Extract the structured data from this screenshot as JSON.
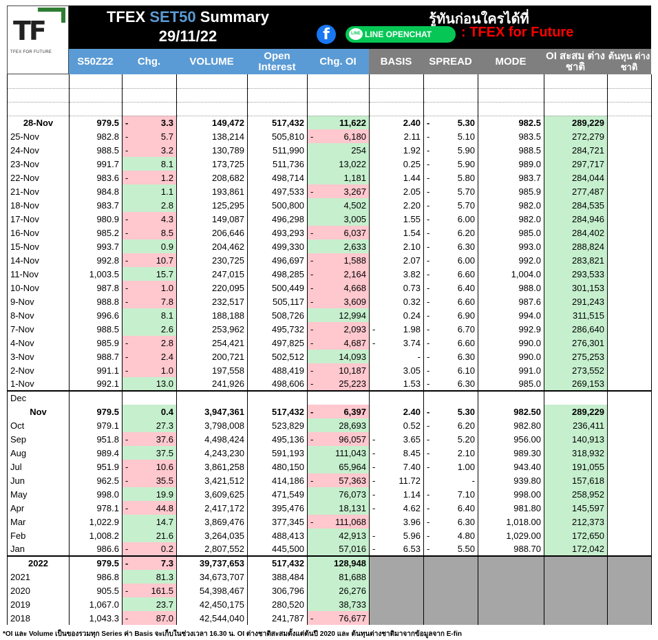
{
  "header": {
    "logo_text": "TF",
    "logo_sub": "TFEX FOR FUTURE",
    "title_prefix": "TFEX",
    "title_set50": "SET50",
    "title_suffix": "Summary",
    "date": "29/11/22",
    "slogan": "รู้ทันก่อนใครได้ที่",
    "line_label": "LINE OPENCHAT",
    "line_bubble": "LINE",
    "group_name": ": TFEX for Future",
    "fb_icon": "f"
  },
  "columns": [
    "S50Z22",
    "Chg.",
    "VOLUME",
    "Open Interest",
    "Chg. OI",
    "BASIS",
    "SPREAD",
    "MODE",
    "OI สะสม ต่างชาติ",
    "ต้นทุน ต่างชาติ"
  ],
  "daily": [
    {
      "d": "28-Nov",
      "p": "979.5",
      "c": "3.3",
      "cs": "-",
      "v": "149,472",
      "oi": "517,432",
      "coi": "11,622",
      "coiS": "",
      "b": "2.40",
      "bs": "",
      "s": "5.30",
      "ss": "-",
      "m": "982.5",
      "f": "289,229"
    },
    {
      "d": "25-Nov",
      "p": "982.8",
      "c": "5.7",
      "cs": "-",
      "v": "138,214",
      "oi": "505,810",
      "coi": "6,180",
      "coiS": "-",
      "b": "2.11",
      "bs": "",
      "s": "5.10",
      "ss": "-",
      "m": "983.5",
      "f": "272,279"
    },
    {
      "d": "24-Nov",
      "p": "988.5",
      "c": "3.2",
      "cs": "-",
      "v": "130,789",
      "oi": "511,990",
      "coi": "254",
      "coiS": "",
      "b": "1.92",
      "bs": "",
      "s": "5.90",
      "ss": "-",
      "m": "988.5",
      "f": "284,721"
    },
    {
      "d": "23-Nov",
      "p": "991.7",
      "c": "8.1",
      "cs": "",
      "v": "173,725",
      "oi": "511,736",
      "coi": "13,022",
      "coiS": "",
      "b": "0.25",
      "bs": "",
      "s": "5.90",
      "ss": "-",
      "m": "989.0",
      "f": "297,717"
    },
    {
      "d": "22-Nov",
      "p": "983.6",
      "c": "1.2",
      "cs": "-",
      "v": "208,682",
      "oi": "498,714",
      "coi": "1,181",
      "coiS": "",
      "b": "1.44",
      "bs": "",
      "s": "5.80",
      "ss": "-",
      "m": "983.7",
      "f": "284,044"
    },
    {
      "d": "21-Nov",
      "p": "984.8",
      "c": "1.1",
      "cs": "",
      "v": "193,861",
      "oi": "497,533",
      "coi": "3,267",
      "coiS": "-",
      "b": "2.05",
      "bs": "",
      "s": "5.70",
      "ss": "-",
      "m": "985.9",
      "f": "277,487"
    },
    {
      "d": "18-Nov",
      "p": "983.7",
      "c": "2.8",
      "cs": "",
      "v": "125,295",
      "oi": "500,800",
      "coi": "4,502",
      "coiS": "",
      "b": "2.20",
      "bs": "",
      "s": "5.70",
      "ss": "-",
      "m": "982.0",
      "f": "284,535"
    },
    {
      "d": "17-Nov",
      "p": "980.9",
      "c": "4.3",
      "cs": "-",
      "v": "149,087",
      "oi": "496,298",
      "coi": "3,005",
      "coiS": "",
      "b": "1.55",
      "bs": "",
      "s": "6.00",
      "ss": "-",
      "m": "982.0",
      "f": "284,946"
    },
    {
      "d": "16-Nov",
      "p": "985.2",
      "c": "8.5",
      "cs": "-",
      "v": "206,646",
      "oi": "493,293",
      "coi": "6,037",
      "coiS": "-",
      "b": "1.54",
      "bs": "",
      "s": "6.20",
      "ss": "-",
      "m": "985.0",
      "f": "284,402"
    },
    {
      "d": "15-Nov",
      "p": "993.7",
      "c": "0.9",
      "cs": "",
      "v": "204,462",
      "oi": "499,330",
      "coi": "2,633",
      "coiS": "",
      "b": "2.10",
      "bs": "",
      "s": "6.30",
      "ss": "-",
      "m": "993.0",
      "f": "288,824"
    },
    {
      "d": "14-Nov",
      "p": "992.8",
      "c": "10.7",
      "cs": "-",
      "v": "230,725",
      "oi": "496,697",
      "coi": "1,588",
      "coiS": "-",
      "b": "2.07",
      "bs": "",
      "s": "6.00",
      "ss": "-",
      "m": "992.0",
      "f": "283,821"
    },
    {
      "d": "11-Nov",
      "p": "1,003.5",
      "c": "15.7",
      "cs": "",
      "v": "247,015",
      "oi": "498,285",
      "coi": "2,164",
      "coiS": "-",
      "b": "3.82",
      "bs": "",
      "s": "6.60",
      "ss": "-",
      "m": "1,004.0",
      "f": "293,533"
    },
    {
      "d": "10-Nov",
      "p": "987.8",
      "c": "1.0",
      "cs": "-",
      "v": "220,095",
      "oi": "500,449",
      "coi": "4,668",
      "coiS": "-",
      "b": "0.73",
      "bs": "",
      "s": "6.40",
      "ss": "-",
      "m": "988.0",
      "f": "301,153"
    },
    {
      "d": "9-Nov",
      "p": "988.8",
      "c": "7.8",
      "cs": "-",
      "v": "232,517",
      "oi": "505,117",
      "coi": "3,609",
      "coiS": "-",
      "b": "0.32",
      "bs": "",
      "s": "6.60",
      "ss": "-",
      "m": "987.6",
      "f": "291,243"
    },
    {
      "d": "8-Nov",
      "p": "996.6",
      "c": "8.1",
      "cs": "",
      "v": "188,188",
      "oi": "508,726",
      "coi": "12,994",
      "coiS": "",
      "b": "0.24",
      "bs": "",
      "s": "6.90",
      "ss": "-",
      "m": "994.0",
      "f": "311,515"
    },
    {
      "d": "7-Nov",
      "p": "988.5",
      "c": "2.6",
      "cs": "",
      "v": "253,962",
      "oi": "495,732",
      "coi": "2,093",
      "coiS": "-",
      "b": "1.98",
      "bs": "-",
      "s": "6.70",
      "ss": "-",
      "m": "992.9",
      "f": "286,640"
    },
    {
      "d": "4-Nov",
      "p": "985.9",
      "c": "2.8",
      "cs": "-",
      "v": "254,421",
      "oi": "497,825",
      "coi": "4,687",
      "coiS": "-",
      "b": "3.74",
      "bs": "-",
      "s": "6.60",
      "ss": "-",
      "m": "990.0",
      "f": "276,301"
    },
    {
      "d": "3-Nov",
      "p": "988.7",
      "c": "2.4",
      "cs": "-",
      "v": "200,721",
      "oi": "502,512",
      "coi": "14,093",
      "coiS": "",
      "b": "-",
      "bs": "",
      "s": "6.30",
      "ss": "-",
      "m": "990.0",
      "f": "275,253"
    },
    {
      "d": "2-Nov",
      "p": "991.1",
      "c": "1.0",
      "cs": "-",
      "v": "197,558",
      "oi": "488,419",
      "coi": "10,187",
      "coiS": "-",
      "b": "3.05",
      "bs": "",
      "s": "6.10",
      "ss": "-",
      "m": "991.0",
      "f": "273,552"
    },
    {
      "d": "1-Nov",
      "p": "992.1",
      "c": "13.0",
      "cs": "",
      "v": "241,926",
      "oi": "498,606",
      "coi": "25,223",
      "coiS": "-",
      "b": "1.53",
      "bs": "",
      "s": "6.30",
      "ss": "-",
      "m": "985.0",
      "f": "269,153"
    }
  ],
  "month_label": "Dec",
  "monthly": [
    {
      "d": "Nov",
      "p": "979.5",
      "c": "0.4",
      "cs": "",
      "v": "3,947,361",
      "oi": "517,432",
      "coi": "6,397",
      "coiS": "-",
      "b": "2.40",
      "bs": "",
      "s": "5.30",
      "ss": "-",
      "m": "982.50",
      "f": "289,229"
    },
    {
      "d": "Oct",
      "p": "979.1",
      "c": "27.3",
      "cs": "",
      "v": "3,798,008",
      "oi": "523,829",
      "coi": "28,693",
      "coiS": "",
      "b": "0.52",
      "bs": "",
      "s": "6.20",
      "ss": "-",
      "m": "982.80",
      "f": "236,411"
    },
    {
      "d": "Sep",
      "p": "951.8",
      "c": "37.6",
      "cs": "-",
      "v": "4,498,424",
      "oi": "495,136",
      "coi": "96,057",
      "coiS": "-",
      "b": "3.65",
      "bs": "-",
      "s": "5.20",
      "ss": "-",
      "m": "956.00",
      "f": "140,913"
    },
    {
      "d": "Aug",
      "p": "989.4",
      "c": "37.5",
      "cs": "",
      "v": "4,243,230",
      "oi": "591,193",
      "coi": "111,043",
      "coiS": "",
      "b": "8.45",
      "bs": "-",
      "s": "2.10",
      "ss": "-",
      "m": "989.30",
      "f": "318,932"
    },
    {
      "d": "Jul",
      "p": "951.9",
      "c": "10.6",
      "cs": "-",
      "v": "3,861,258",
      "oi": "480,150",
      "coi": "65,964",
      "coiS": "",
      "b": "7.40",
      "bs": "-",
      "s": "1.00",
      "ss": "-",
      "m": "943.40",
      "f": "191,055"
    },
    {
      "d": "Jun",
      "p": "962.5",
      "c": "35.5",
      "cs": "-",
      "v": "3,421,512",
      "oi": "414,186",
      "coi": "57,363",
      "coiS": "-",
      "b": "11.72",
      "bs": "-",
      "s": "-",
      "ss": "",
      "m": "939.80",
      "f": "157,618"
    },
    {
      "d": "May",
      "p": "998.0",
      "c": "19.9",
      "cs": "",
      "v": "3,609,625",
      "oi": "471,549",
      "coi": "76,073",
      "coiS": "",
      "b": "1.14",
      "bs": "-",
      "s": "7.10",
      "ss": "-",
      "m": "998.00",
      "f": "258,952"
    },
    {
      "d": "Apr",
      "p": "978.1",
      "c": "44.8",
      "cs": "-",
      "v": "2,417,172",
      "oi": "395,476",
      "coi": "18,131",
      "coiS": "",
      "b": "4.62",
      "bs": "-",
      "s": "6.40",
      "ss": "-",
      "m": "981.80",
      "f": "145,597"
    },
    {
      "d": "Mar",
      "p": "1,022.9",
      "c": "14.7",
      "cs": "",
      "v": "3,869,476",
      "oi": "377,345",
      "coi": "111,068",
      "coiS": "-",
      "b": "3.96",
      "bs": "",
      "s": "6.30",
      "ss": "-",
      "m": "1,018.00",
      "f": "212,373"
    },
    {
      "d": "Feb",
      "p": "1,008.2",
      "c": "21.6",
      "cs": "",
      "v": "3,264,035",
      "oi": "488,413",
      "coi": "42,913",
      "coiS": "",
      "b": "5.96",
      "bs": "-",
      "s": "4.80",
      "ss": "-",
      "m": "1,029.00",
      "f": "172,650"
    },
    {
      "d": "Jan",
      "p": "986.6",
      "c": "0.2",
      "cs": "-",
      "v": "2,807,552",
      "oi": "445,500",
      "coi": "57,016",
      "coiS": "",
      "b": "6.53",
      "bs": "-",
      "s": "5.50",
      "ss": "-",
      "m": "988.70",
      "f": "172,042"
    }
  ],
  "yearly": [
    {
      "d": "2022",
      "p": "979.5",
      "c": "7.3",
      "cs": "-",
      "v": "39,737,653",
      "oi": "517,432",
      "coi": "128,948",
      "coiS": ""
    },
    {
      "d": "2021",
      "p": "986.8",
      "c": "81.3",
      "cs": "",
      "v": "34,673,707",
      "oi": "388,484",
      "coi": "81,688",
      "coiS": ""
    },
    {
      "d": "2020",
      "p": "905.5",
      "c": "161.5",
      "cs": "-",
      "v": "54,398,467",
      "oi": "306,796",
      "coi": "26,276",
      "coiS": ""
    },
    {
      "d": "2019",
      "p": "1,067.0",
      "c": "23.7",
      "cs": "",
      "v": "42,450,175",
      "oi": "280,520",
      "coi": "38,733",
      "coiS": ""
    },
    {
      "d": "2018",
      "p": "1,043.3",
      "c": "87.0",
      "cs": "-",
      "v": "42,544,040",
      "oi": "241,787",
      "coi": "76,677",
      "coiS": "-"
    }
  ],
  "footnote": "*OI และ Volume เป็นของรวมทุก Series ค่า Basis จะเก็บในช่วงเวลา 16.30 น. OI ต่างชาติสะสมตั้งแต่ต้นปี 2020 และ ต้นทุนต่างชาติมาจากข้อมูลจาก E-fin",
  "colors": {
    "green": "#c6efce",
    "red": "#ffc7ce",
    "blue": "#5b9bd5",
    "gray": "#7f7f7f",
    "fill": "#a6a6a6"
  }
}
